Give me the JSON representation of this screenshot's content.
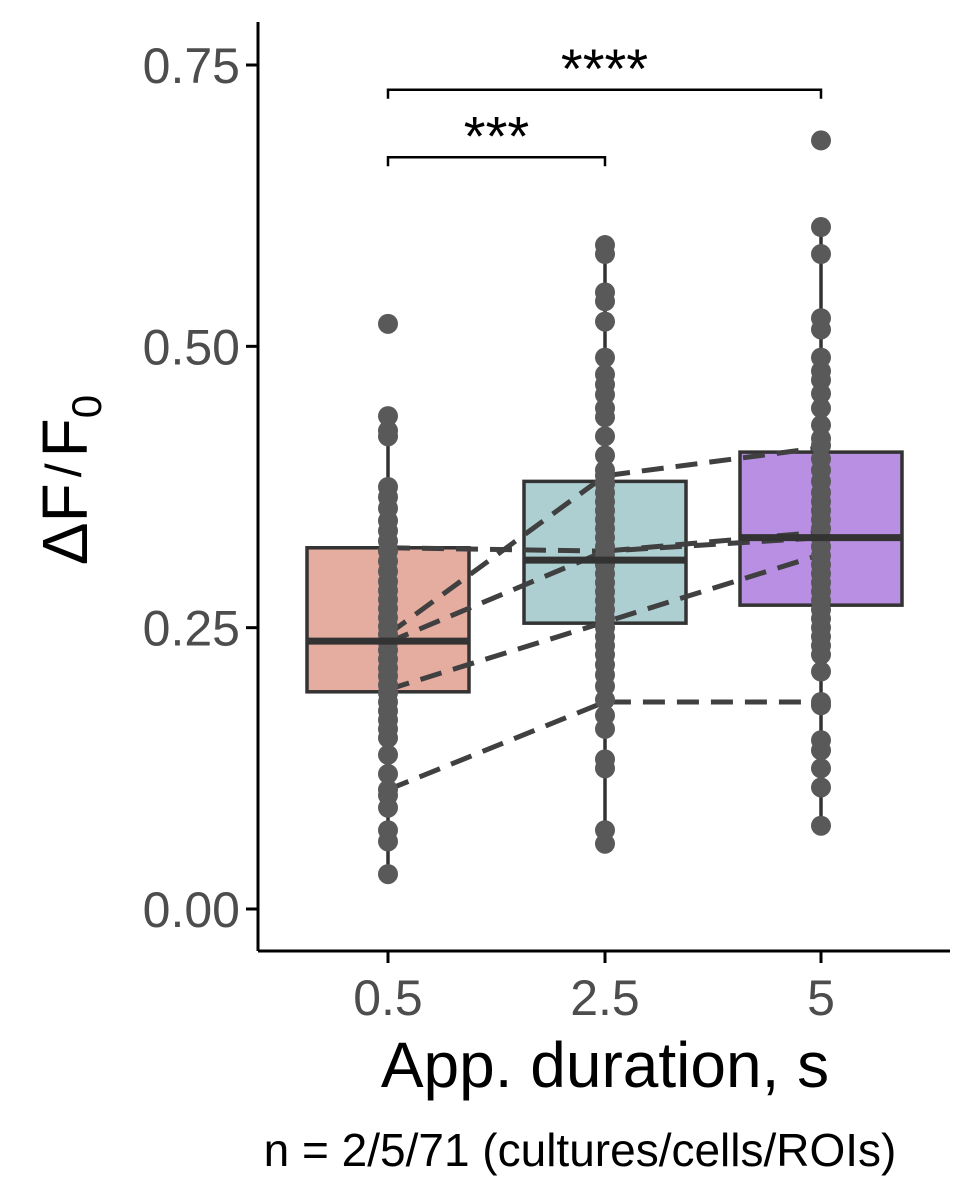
{
  "chart_data": {
    "type": "box",
    "x_label": "App. duration, s",
    "y_label_main": "ΔF",
    "y_label_denominator": "F",
    "y_label_subscript": "0",
    "footnote": "n = 2/5/71 (cultures/cells/ROIs)",
    "ylim": [
      -0.037,
      0.78
    ],
    "yticks": [
      {
        "value": 0.0,
        "label": "0.00"
      },
      {
        "value": 0.25,
        "label": "0.25"
      },
      {
        "value": 0.5,
        "label": "0.50"
      },
      {
        "value": 0.75,
        "label": "0.75"
      }
    ],
    "categories": [
      "0.5",
      "2.5",
      "5"
    ],
    "boxes": [
      {
        "category": "0.5",
        "q1": 0.193,
        "median": 0.238,
        "q3": 0.321,
        "whisker_low": 0.031,
        "whisker_high": 0.435,
        "fill": "#e5aca0"
      },
      {
        "category": "2.5",
        "q1": 0.254,
        "median": 0.31,
        "q3": 0.38,
        "whisker_low": 0.058,
        "whisker_high": 0.588,
        "fill": "#aecfd1"
      },
      {
        "category": "5",
        "q1": 0.27,
        "median": 0.33,
        "q3": 0.406,
        "whisker_low": 0.074,
        "whisker_high": 0.607,
        "fill": "#b98fe4"
      }
    ],
    "points": [
      {
        "category": "0.5",
        "values": [
          0.52,
          0.438,
          0.425,
          0.42,
          0.375,
          0.366,
          0.356,
          0.345,
          0.336,
          0.327,
          0.318,
          0.309,
          0.3,
          0.291,
          0.283,
          0.275,
          0.267,
          0.259,
          0.251,
          0.244,
          0.237,
          0.23,
          0.222,
          0.214,
          0.207,
          0.199,
          0.192,
          0.184,
          0.176,
          0.168,
          0.16,
          0.152,
          0.137,
          0.12,
          0.106,
          0.101,
          0.09,
          0.07,
          0.06,
          0.031
        ]
      },
      {
        "category": "2.5",
        "values": [
          0.59,
          0.582,
          0.548,
          0.54,
          0.522,
          0.49,
          0.475,
          0.466,
          0.457,
          0.445,
          0.437,
          0.42,
          0.403,
          0.39,
          0.385,
          0.378,
          0.37,
          0.362,
          0.354,
          0.346,
          0.338,
          0.33,
          0.322,
          0.314,
          0.306,
          0.298,
          0.29,
          0.282,
          0.274,
          0.266,
          0.258,
          0.25,
          0.242,
          0.234,
          0.226,
          0.217,
          0.208,
          0.198,
          0.186,
          0.172,
          0.16,
          0.133,
          0.125,
          0.07,
          0.058
        ]
      },
      {
        "category": "5",
        "values": [
          0.683,
          0.606,
          0.582,
          0.525,
          0.515,
          0.49,
          0.478,
          0.47,
          0.458,
          0.445,
          0.43,
          0.418,
          0.412,
          0.4,
          0.39,
          0.38,
          0.37,
          0.362,
          0.354,
          0.346,
          0.338,
          0.33,
          0.322,
          0.314,
          0.306,
          0.298,
          0.29,
          0.282,
          0.274,
          0.266,
          0.258,
          0.25,
          0.242,
          0.234,
          0.226,
          0.211,
          0.184,
          0.181,
          0.15,
          0.141,
          0.125,
          0.108,
          0.074
        ]
      }
    ],
    "paired_lines": [
      {
        "values": [
          0.321,
          0.318,
          0.33
        ]
      },
      {
        "values": [
          0.244,
          0.385,
          0.41
        ]
      },
      {
        "values": [
          0.237,
          0.318,
          0.335
        ]
      },
      {
        "values": [
          0.195,
          0.255,
          0.315
        ]
      },
      {
        "values": [
          0.106,
          0.184,
          0.184
        ]
      }
    ],
    "significance": [
      {
        "from": "0.5",
        "to": "2.5",
        "y": 0.668,
        "label": "***"
      },
      {
        "from": "0.5",
        "to": "5",
        "y": 0.728,
        "label": "****"
      }
    ],
    "colors": {
      "axis": "#000000",
      "tick_label": "#4d4d4d",
      "box_outline": "#333333",
      "point": "#595959",
      "dashed_line": "#404040",
      "whisker": "#333333"
    },
    "grid": false,
    "legend": "none"
  }
}
